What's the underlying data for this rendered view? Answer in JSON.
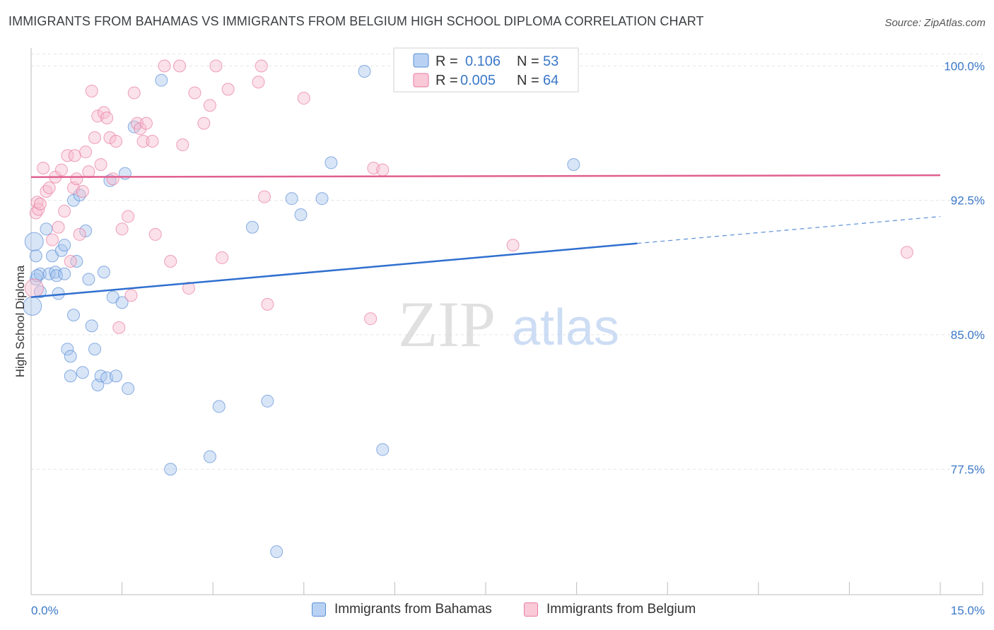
{
  "title": "IMMIGRANTS FROM BAHAMAS VS IMMIGRANTS FROM BELGIUM HIGH SCHOOL DIPLOMA CORRELATION CHART",
  "source": "Source: ZipAtlas.com",
  "watermark": {
    "zip": "ZIP",
    "atlas": "atlas"
  },
  "legend_stats": [
    {
      "r_label": "R =",
      "r_value": "0.106",
      "n_label": "N =",
      "n_value": "53",
      "color": "#5b8fd6"
    },
    {
      "r_label": "R =",
      "r_value": "0.005",
      "n_label": "N =",
      "n_value": "64",
      "color": "#e87ba0"
    }
  ],
  "chart_data": {
    "type": "scatter",
    "title": "IMMIGRANTS FROM BAHAMAS VS IMMIGRANTS FROM BELGIUM HIGH SCHOOL DIPLOMA CORRELATION CHART",
    "xlabel": "",
    "ylabel": "High School Diploma",
    "xlim": [
      0,
      15
    ],
    "ylim": [
      70.5,
      101
    ],
    "x_tick_labels": [
      "0.0%",
      "15.0%"
    ],
    "y_ticks": [
      77.5,
      85.0,
      92.5,
      100.0
    ],
    "y_tick_labels": [
      "77.5%",
      "85.0%",
      "92.5%",
      "100.0%"
    ],
    "grid": true,
    "legend_position": "top-center",
    "series": [
      {
        "name": "Immigrants from Bahamas",
        "color": "#5b8fd6",
        "fill": "#a9c6ee",
        "trend": {
          "x0": 0,
          "y0": 87.1,
          "x1": 10.0,
          "y1": 90.1,
          "dashed_to_x": 15,
          "dashed_to_y": 91.6
        },
        "points": [
          [
            0.02,
            86.6
          ],
          [
            0.05,
            90.2
          ],
          [
            0.08,
            89.4
          ],
          [
            0.08,
            88.1
          ],
          [
            0.15,
            88.4
          ],
          [
            0.15,
            87.4
          ],
          [
            0.25,
            90.9
          ],
          [
            0.3,
            88.4
          ],
          [
            0.35,
            89.4
          ],
          [
            0.4,
            88.5
          ],
          [
            0.42,
            88.3
          ],
          [
            0.45,
            87.3
          ],
          [
            0.5,
            89.7
          ],
          [
            0.55,
            90.0
          ],
          [
            0.55,
            88.4
          ],
          [
            0.6,
            84.2
          ],
          [
            0.65,
            83.8
          ],
          [
            0.65,
            82.7
          ],
          [
            0.7,
            86.1
          ],
          [
            0.7,
            92.5
          ],
          [
            0.75,
            89.1
          ],
          [
            0.8,
            92.8
          ],
          [
            0.85,
            82.9
          ],
          [
            0.9,
            90.8
          ],
          [
            0.95,
            88.1
          ],
          [
            1.0,
            85.5
          ],
          [
            1.05,
            84.2
          ],
          [
            1.1,
            82.2
          ],
          [
            1.15,
            82.7
          ],
          [
            1.2,
            88.5
          ],
          [
            1.25,
            82.6
          ],
          [
            1.3,
            93.6
          ],
          [
            1.35,
            87.1
          ],
          [
            1.4,
            82.7
          ],
          [
            1.5,
            86.8
          ],
          [
            1.55,
            94.0
          ],
          [
            1.6,
            82.0
          ],
          [
            1.7,
            96.6
          ],
          [
            2.15,
            99.2
          ],
          [
            2.3,
            77.5
          ],
          [
            2.95,
            78.2
          ],
          [
            3.1,
            81.0
          ],
          [
            3.65,
            91.0
          ],
          [
            3.9,
            81.3
          ],
          [
            4.05,
            72.9
          ],
          [
            4.3,
            92.6
          ],
          [
            4.45,
            91.7
          ],
          [
            4.8,
            92.6
          ],
          [
            4.95,
            94.6
          ],
          [
            5.5,
            99.7
          ],
          [
            5.8,
            78.6
          ],
          [
            8.95,
            94.5
          ],
          [
            0.1,
            88.3
          ]
        ]
      },
      {
        "name": "Immigrants from Belgium",
        "color": "#e87ba0",
        "fill": "#f7bccf",
        "trend": {
          "x0": 0,
          "y0": 93.8,
          "x1": 15,
          "y1": 93.9
        },
        "points": [
          [
            0.05,
            87.6
          ],
          [
            0.08,
            91.8
          ],
          [
            0.1,
            92.4
          ],
          [
            0.12,
            92.0
          ],
          [
            0.15,
            92.3
          ],
          [
            0.2,
            94.3
          ],
          [
            0.25,
            93.0
          ],
          [
            0.3,
            93.2
          ],
          [
            0.35,
            90.3
          ],
          [
            0.4,
            93.8
          ],
          [
            0.45,
            91.0
          ],
          [
            0.5,
            94.2
          ],
          [
            0.55,
            91.9
          ],
          [
            0.6,
            95.0
          ],
          [
            0.65,
            89.1
          ],
          [
            0.7,
            93.2
          ],
          [
            0.72,
            95.0
          ],
          [
            0.75,
            93.7
          ],
          [
            0.8,
            90.6
          ],
          [
            0.85,
            93.0
          ],
          [
            0.9,
            95.2
          ],
          [
            0.95,
            94.1
          ],
          [
            1.0,
            98.6
          ],
          [
            1.05,
            96.0
          ],
          [
            1.1,
            97.2
          ],
          [
            1.15,
            94.5
          ],
          [
            1.2,
            97.4
          ],
          [
            1.25,
            97.1
          ],
          [
            1.3,
            96.0
          ],
          [
            1.35,
            93.7
          ],
          [
            1.4,
            95.8
          ],
          [
            1.45,
            85.4
          ],
          [
            1.5,
            90.9
          ],
          [
            1.6,
            91.6
          ],
          [
            1.65,
            87.2
          ],
          [
            1.7,
            98.5
          ],
          [
            1.75,
            96.8
          ],
          [
            1.8,
            96.5
          ],
          [
            1.85,
            95.8
          ],
          [
            1.9,
            96.8
          ],
          [
            2.0,
            95.8
          ],
          [
            2.05,
            90.6
          ],
          [
            2.2,
            100.0
          ],
          [
            2.3,
            89.1
          ],
          [
            2.45,
            100.0
          ],
          [
            2.5,
            95.6
          ],
          [
            2.6,
            87.6
          ],
          [
            2.7,
            98.5
          ],
          [
            2.85,
            96.8
          ],
          [
            2.95,
            97.8
          ],
          [
            3.05,
            100.0
          ],
          [
            3.15,
            89.3
          ],
          [
            3.25,
            98.7
          ],
          [
            3.75,
            99.1
          ],
          [
            3.8,
            100.0
          ],
          [
            3.85,
            92.7
          ],
          [
            3.9,
            86.7
          ],
          [
            4.5,
            98.2
          ],
          [
            5.6,
            85.9
          ],
          [
            5.65,
            94.3
          ],
          [
            5.8,
            94.2
          ],
          [
            6.15,
            100.0
          ],
          [
            7.95,
            90.0
          ],
          [
            14.45,
            89.6
          ]
        ]
      }
    ]
  }
}
